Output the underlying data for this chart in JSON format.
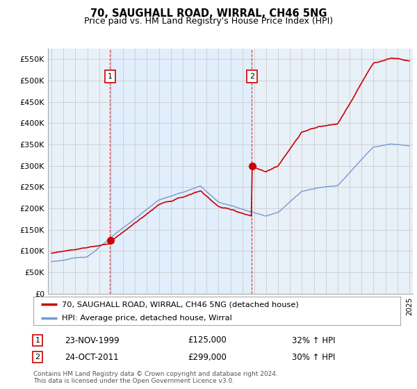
{
  "title": "70, SAUGHALL ROAD, WIRRAL, CH46 5NG",
  "subtitle": "Price paid vs. HM Land Registry's House Price Index (HPI)",
  "ylim": [
    0,
    575000
  ],
  "yticks": [
    0,
    50000,
    100000,
    150000,
    200000,
    250000,
    300000,
    350000,
    400000,
    450000,
    500000,
    550000
  ],
  "ytick_labels": [
    "£0",
    "£50K",
    "£100K",
    "£150K",
    "£200K",
    "£250K",
    "£300K",
    "£350K",
    "£400K",
    "£450K",
    "£500K",
    "£550K"
  ],
  "red_color": "#cc0000",
  "blue_color": "#7799cc",
  "shade_color": "#ddeeff",
  "legend_label_red": "70, SAUGHALL ROAD, WIRRAL, CH46 5NG (detached house)",
  "legend_label_blue": "HPI: Average price, detached house, Wirral",
  "sale1_year": 1999.9,
  "sale1_value": 125000,
  "sale2_year": 2011.8,
  "sale2_value": 299000,
  "footer": "Contains HM Land Registry data © Crown copyright and database right 2024.\nThis data is licensed under the Open Government Licence v3.0.",
  "background_color": "#ffffff",
  "grid_color": "#cccccc",
  "chart_bg": "#e8f0f8"
}
